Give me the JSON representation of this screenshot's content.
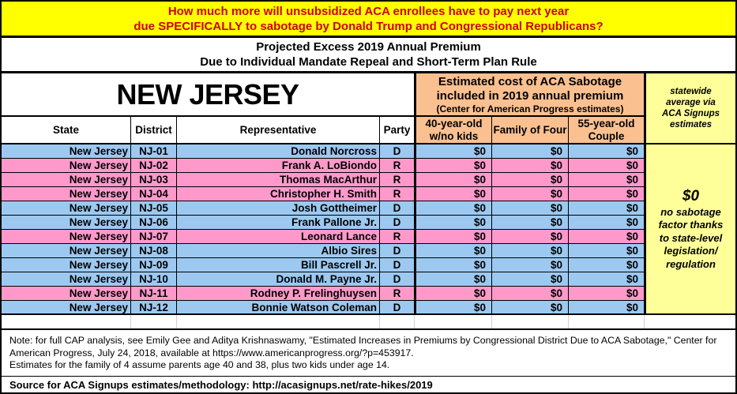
{
  "colors": {
    "banner_bg": "#FFFF00",
    "banner_text": "#CC0000",
    "orange_header": "#FAC090",
    "yellow_sidebar": "#FFFF99",
    "dem_row": "#9DC9F0",
    "rep_row": "#FF99CC",
    "border": "#000000"
  },
  "banner": {
    "line1": "How much more will unsubsidized ACA enrollees have to pay next year",
    "line2": "due SPECIFICALLY to sabotage by Donald Trump and Congressional Republicans?"
  },
  "subtitle": {
    "line1": "Projected Excess 2019 Annual Premium",
    "line2": "Due to Individual Mandate Repeal and Short-Term Plan Rule"
  },
  "table": {
    "state_title": "NEW JERSEY",
    "cap_header": {
      "line1": "Estimated cost of ACA Sabotage",
      "line2": "included in 2019 annual premium",
      "line3": "(Center for American Progress estimates)"
    },
    "sidebar_header": "statewide average via ACA Signups estimates",
    "columns": {
      "state": "State",
      "district": "District",
      "representative": "Representative",
      "party": "Party",
      "age40": "40-year-old w/no kids",
      "family": "Family of Four",
      "age55": "55-year-old Couple"
    },
    "rows": [
      {
        "state": "New Jersey",
        "district": "NJ-01",
        "representative": "Donald Norcross",
        "party": "D",
        "v40": "$0",
        "family": "$0",
        "v55": "$0"
      },
      {
        "state": "New Jersey",
        "district": "NJ-02",
        "representative": "Frank A. LoBiondo",
        "party": "R",
        "v40": "$0",
        "family": "$0",
        "v55": "$0"
      },
      {
        "state": "New Jersey",
        "district": "NJ-03",
        "representative": "Thomas MacArthur",
        "party": "R",
        "v40": "$0",
        "family": "$0",
        "v55": "$0"
      },
      {
        "state": "New Jersey",
        "district": "NJ-04",
        "representative": "Christopher H. Smith",
        "party": "R",
        "v40": "$0",
        "family": "$0",
        "v55": "$0"
      },
      {
        "state": "New Jersey",
        "district": "NJ-05",
        "representative": "Josh Gottheimer",
        "party": "D",
        "v40": "$0",
        "family": "$0",
        "v55": "$0"
      },
      {
        "state": "New Jersey",
        "district": "NJ-06",
        "representative": "Frank Pallone Jr.",
        "party": "D",
        "v40": "$0",
        "family": "$0",
        "v55": "$0"
      },
      {
        "state": "New Jersey",
        "district": "NJ-07",
        "representative": "Leonard Lance",
        "party": "R",
        "v40": "$0",
        "family": "$0",
        "v55": "$0"
      },
      {
        "state": "New Jersey",
        "district": "NJ-08",
        "representative": "Albio Sires",
        "party": "D",
        "v40": "$0",
        "family": "$0",
        "v55": "$0"
      },
      {
        "state": "New Jersey",
        "district": "NJ-09",
        "representative": "Bill Pascrell Jr.",
        "party": "D",
        "v40": "$0",
        "family": "$0",
        "v55": "$0"
      },
      {
        "state": "New Jersey",
        "district": "NJ-10",
        "representative": "Donald M. Payne Jr.",
        "party": "D",
        "v40": "$0",
        "family": "$0",
        "v55": "$0"
      },
      {
        "state": "New Jersey",
        "district": "NJ-11",
        "representative": "Rodney P. Frelinghuysen",
        "party": "R",
        "v40": "$0",
        "family": "$0",
        "v55": "$0"
      },
      {
        "state": "New Jersey",
        "district": "NJ-12",
        "representative": "Bonnie Watson Coleman",
        "party": "D",
        "v40": "$0",
        "family": "$0",
        "v55": "$0"
      }
    ],
    "sidebar_note": {
      "amount": "$0",
      "text": "no sabotage factor thanks to state-level legislation/ regulation"
    }
  },
  "notes": {
    "line1": "Note: for full CAP analysis, see Emily Gee and Aditya Krishnaswamy, \"Estimated Increases in Premiums by Congressional District Due to ACA Sabotage,\" Center for American Progress, July 24, 2018, available at https://www.americanprogress.org/?p=453917.",
    "line2": "Estimates for the family of 4 assume parents age 40 and 38, plus two kids under age 14."
  },
  "source": "Source for ACA Signups estimates/methodology: http://acasignups.net/rate-hikes/2019",
  "chart_data": {
    "type": "table",
    "title": "Projected Excess 2019 Annual Premium Due to Individual Mandate Repeal and Short-Term Plan Rule — New Jersey",
    "columns": [
      "State",
      "District",
      "Representative",
      "Party",
      "40-year-old w/no kids",
      "Family of Four",
      "55-year-old Couple"
    ],
    "rows": [
      [
        "New Jersey",
        "NJ-01",
        "Donald Norcross",
        "D",
        "$0",
        "$0",
        "$0"
      ],
      [
        "New Jersey",
        "NJ-02",
        "Frank A. LoBiondo",
        "R",
        "$0",
        "$0",
        "$0"
      ],
      [
        "New Jersey",
        "NJ-03",
        "Thomas MacArthur",
        "R",
        "$0",
        "$0",
        "$0"
      ],
      [
        "New Jersey",
        "NJ-04",
        "Christopher H. Smith",
        "R",
        "$0",
        "$0",
        "$0"
      ],
      [
        "New Jersey",
        "NJ-05",
        "Josh Gottheimer",
        "D",
        "$0",
        "$0",
        "$0"
      ],
      [
        "New Jersey",
        "NJ-06",
        "Frank Pallone Jr.",
        "D",
        "$0",
        "$0",
        "$0"
      ],
      [
        "New Jersey",
        "NJ-07",
        "Leonard Lance",
        "R",
        "$0",
        "$0",
        "$0"
      ],
      [
        "New Jersey",
        "NJ-08",
        "Albio Sires",
        "D",
        "$0",
        "$0",
        "$0"
      ],
      [
        "New Jersey",
        "NJ-09",
        "Bill Pascrell Jr.",
        "D",
        "$0",
        "$0",
        "$0"
      ],
      [
        "New Jersey",
        "NJ-10",
        "Donald M. Payne Jr.",
        "D",
        "$0",
        "$0",
        "$0"
      ],
      [
        "New Jersey",
        "NJ-11",
        "Rodney P. Frelinghuysen",
        "R",
        "$0",
        "$0",
        "$0"
      ],
      [
        "New Jersey",
        "NJ-12",
        "Bonnie Watson Coleman",
        "D",
        "$0",
        "$0",
        "$0"
      ]
    ],
    "statewide_average": "$0",
    "annotation": "no sabotage factor thanks to state-level legislation/regulation",
    "row_color_legend": {
      "D": "blue",
      "R": "pink"
    }
  }
}
